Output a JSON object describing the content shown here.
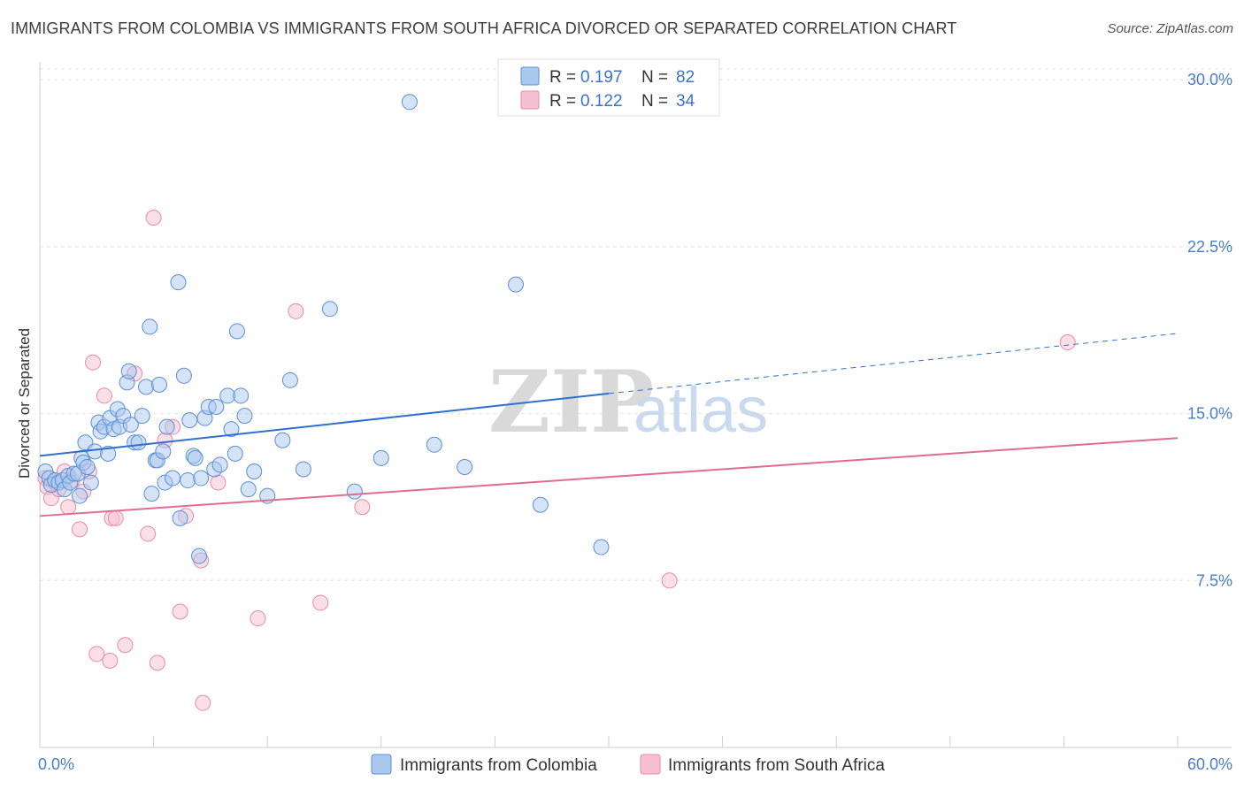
{
  "title": "IMMIGRANTS FROM COLOMBIA VS IMMIGRANTS FROM SOUTH AFRICA DIVORCED OR SEPARATED CORRELATION CHART",
  "source": "Source: ZipAtlas.com",
  "watermark": {
    "zip": "ZIP",
    "atlas": "atlas"
  },
  "legend": {
    "r_label": "R =",
    "n_label": "N =",
    "entries": [
      {
        "r": "0.197",
        "n": "82",
        "color": "#a9c8ee",
        "stroke": "#5b8fd6"
      },
      {
        "r": "0.122",
        "n": "34",
        "color": "#f7bfd2",
        "stroke": "#e88aa9"
      }
    ]
  },
  "colors": {
    "blue_fill": "#a9c8ee",
    "blue_stroke": "#5b8fd6",
    "blue_line": "#2f6fd0",
    "pink_fill": "#f7bfd2",
    "pink_stroke": "#e88aa9",
    "pink_line": "#e06c95",
    "grid": "#e2e2e2",
    "tick_label": "#4a7cc9"
  },
  "chart_data": {
    "type": "scatter",
    "title": "IMMIGRANTS FROM COLOMBIA VS IMMIGRANTS FROM SOUTH AFRICA DIVORCED OR SEPARATED CORRELATION CHART",
    "xlabel": "",
    "ylabel": "Divorced or Separated",
    "xlim": [
      0,
      60
    ],
    "ylim": [
      0,
      30.8
    ],
    "x_tick_labels": [
      "0.0%",
      "60.0%"
    ],
    "y_ticks": [
      7.5,
      15.0,
      22.5,
      30.0
    ],
    "y_tick_labels": [
      "7.5%",
      "15.0%",
      "22.5%",
      "30.0%"
    ],
    "grid": true,
    "legend_position": "top-center",
    "series": [
      {
        "name": "Immigrants from Colombia",
        "trend": {
          "x0": 0,
          "y0": 13.1,
          "x1": 30,
          "y1": 15.9,
          "dashed_to_x": 60,
          "dashed_to_y": 18.6
        },
        "points": [
          [
            0.3,
            12.4
          ],
          [
            0.5,
            12.1
          ],
          [
            0.6,
            11.8
          ],
          [
            0.8,
            12.0
          ],
          [
            1.0,
            11.9
          ],
          [
            1.2,
            12.0
          ],
          [
            1.3,
            11.6
          ],
          [
            1.5,
            12.2
          ],
          [
            1.6,
            11.9
          ],
          [
            1.8,
            12.3
          ],
          [
            2.0,
            12.3
          ],
          [
            2.1,
            11.3
          ],
          [
            2.2,
            13.0
          ],
          [
            2.3,
            12.8
          ],
          [
            2.4,
            13.7
          ],
          [
            2.5,
            12.6
          ],
          [
            2.7,
            11.9
          ],
          [
            2.9,
            13.3
          ],
          [
            3.1,
            14.6
          ],
          [
            3.2,
            14.2
          ],
          [
            3.4,
            14.4
          ],
          [
            3.6,
            13.2
          ],
          [
            3.7,
            14.8
          ],
          [
            3.9,
            14.3
          ],
          [
            4.1,
            15.2
          ],
          [
            4.2,
            14.4
          ],
          [
            4.4,
            14.9
          ],
          [
            4.6,
            16.4
          ],
          [
            4.7,
            16.9
          ],
          [
            4.8,
            14.5
          ],
          [
            5.0,
            13.7
          ],
          [
            5.2,
            13.7
          ],
          [
            5.4,
            14.9
          ],
          [
            5.6,
            16.2
          ],
          [
            5.8,
            18.9
          ],
          [
            5.9,
            11.4
          ],
          [
            6.1,
            12.9
          ],
          [
            6.2,
            12.9
          ],
          [
            6.3,
            16.3
          ],
          [
            6.5,
            13.3
          ],
          [
            6.6,
            11.9
          ],
          [
            6.7,
            14.4
          ],
          [
            7.0,
            12.1
          ],
          [
            7.3,
            20.9
          ],
          [
            7.4,
            10.3
          ],
          [
            7.6,
            16.7
          ],
          [
            7.8,
            12.0
          ],
          [
            7.9,
            14.7
          ],
          [
            8.1,
            13.1
          ],
          [
            8.2,
            13.0
          ],
          [
            8.4,
            8.6
          ],
          [
            8.5,
            12.1
          ],
          [
            8.7,
            14.8
          ],
          [
            8.9,
            15.3
          ],
          [
            9.2,
            12.5
          ],
          [
            9.3,
            15.3
          ],
          [
            9.5,
            12.7
          ],
          [
            9.9,
            15.8
          ],
          [
            10.1,
            14.3
          ],
          [
            10.3,
            13.2
          ],
          [
            10.4,
            18.7
          ],
          [
            10.6,
            15.8
          ],
          [
            10.8,
            14.9
          ],
          [
            11.0,
            11.6
          ],
          [
            11.3,
            12.4
          ],
          [
            12.0,
            11.3
          ],
          [
            12.8,
            13.8
          ],
          [
            13.2,
            16.5
          ],
          [
            13.9,
            12.5
          ],
          [
            15.3,
            19.7
          ],
          [
            16.6,
            11.5
          ],
          [
            18.0,
            13.0
          ],
          [
            19.5,
            29.0
          ],
          [
            20.8,
            13.6
          ],
          [
            22.4,
            12.6
          ],
          [
            25.1,
            20.8
          ],
          [
            26.4,
            10.9
          ],
          [
            29.6,
            9.0
          ]
        ]
      },
      {
        "name": "Immigrants from South Africa",
        "trend": {
          "x0": 0,
          "y0": 10.4,
          "x1": 60,
          "y1": 13.9
        },
        "points": [
          [
            0.3,
            12.1
          ],
          [
            0.4,
            11.7
          ],
          [
            0.6,
            11.2
          ],
          [
            0.8,
            11.9
          ],
          [
            1.0,
            11.6
          ],
          [
            1.3,
            12.4
          ],
          [
            1.5,
            10.8
          ],
          [
            1.7,
            12.0
          ],
          [
            2.1,
            9.8
          ],
          [
            2.3,
            11.5
          ],
          [
            2.6,
            12.4
          ],
          [
            2.8,
            17.3
          ],
          [
            3.0,
            4.2
          ],
          [
            3.4,
            15.8
          ],
          [
            3.7,
            3.9
          ],
          [
            3.8,
            10.3
          ],
          [
            4.0,
            10.3
          ],
          [
            4.5,
            4.6
          ],
          [
            5.0,
            16.8
          ],
          [
            5.7,
            9.6
          ],
          [
            6.0,
            23.8
          ],
          [
            6.2,
            3.8
          ],
          [
            6.6,
            13.8
          ],
          [
            7.0,
            14.4
          ],
          [
            7.4,
            6.1
          ],
          [
            7.7,
            10.4
          ],
          [
            8.5,
            8.4
          ],
          [
            8.6,
            2.0
          ],
          [
            9.4,
            11.9
          ],
          [
            11.5,
            5.8
          ],
          [
            13.5,
            19.6
          ],
          [
            14.8,
            6.5
          ],
          [
            17.0,
            10.8
          ],
          [
            33.2,
            7.5
          ],
          [
            54.2,
            18.2
          ]
        ]
      }
    ]
  },
  "bottom_legend": [
    {
      "label": "Immigrants from Colombia"
    },
    {
      "label": "Immigrants from South Africa"
    }
  ]
}
